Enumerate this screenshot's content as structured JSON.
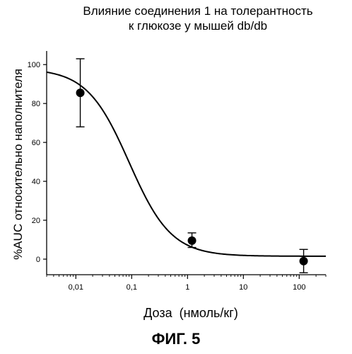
{
  "chart_data": {
    "type": "scatter",
    "title_line1": "Влияние соединения 1 на толерантность",
    "title_line2": "к глюкозе у мышей db/db",
    "xlabel": "Доза  (нмоль/кг)",
    "ylabel": "%AUC относительно наполнителя",
    "figure_caption": "ФИГ. 5",
    "x_scale": "log",
    "xlim": [
      0.003,
      300
    ],
    "ylim": [
      -8,
      107
    ],
    "x_ticks": [
      0.01,
      0.1,
      1,
      10,
      100
    ],
    "x_tick_labels": [
      "0,01",
      "0,1",
      "1",
      "10",
      "100"
    ],
    "y_ticks": [
      0,
      20,
      40,
      60,
      80,
      100
    ],
    "y_tick_labels": [
      "0",
      "20",
      "40",
      "60",
      "80",
      "100"
    ],
    "grid": false,
    "points": [
      {
        "x": 0.012,
        "y": 85.5,
        "err_low": 68,
        "err_high": 103
      },
      {
        "x": 1.2,
        "y": 9.5,
        "err_low": 6,
        "err_high": 13.5
      },
      {
        "x": 120,
        "y": -1,
        "err_low": -7,
        "err_high": 5
      }
    ],
    "fit_curve": {
      "top": 98,
      "bottom": 1.5,
      "ec50": 0.09,
      "hill": 1.15
    }
  }
}
